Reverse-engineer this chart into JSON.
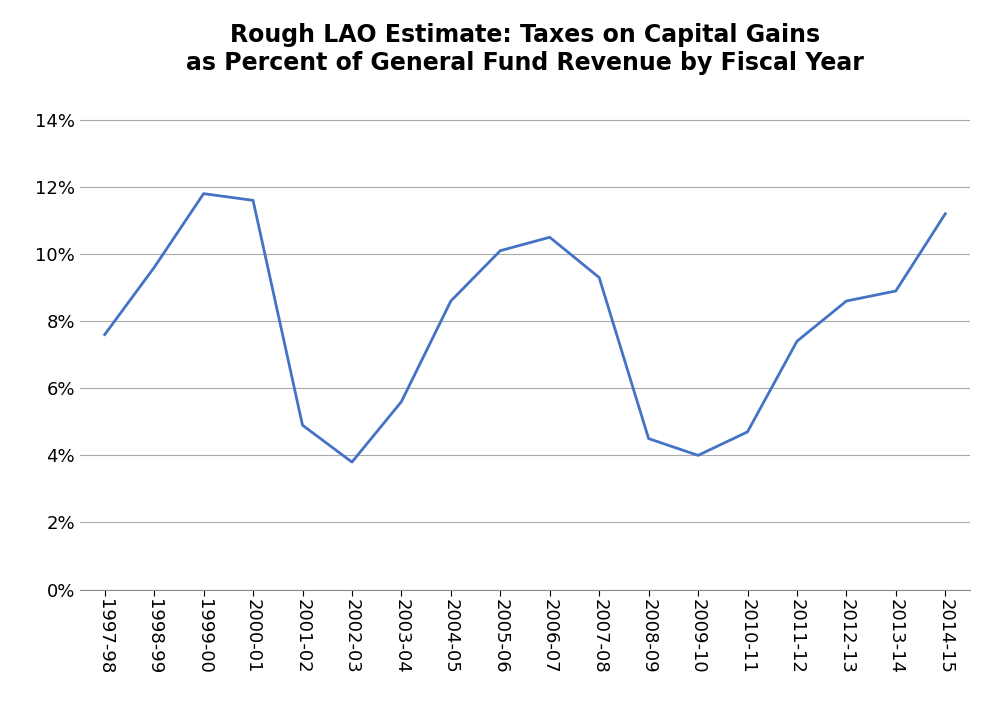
{
  "title_line1": "Rough LAO Estimate: Taxes on Capital Gains",
  "title_line2": "as Percent of General Fund Revenue by Fiscal Year",
  "title_fontsize": 17,
  "line_color": "#4472C4",
  "line_width": 2.0,
  "background_color": "#FFFFFF",
  "grid_color": "#AAAAAA",
  "categories": [
    "1997-98",
    "1998-99",
    "1999-00",
    "2000-01",
    "2001-02",
    "2002-03",
    "2003-04",
    "2004-05",
    "2005-06",
    "2006-07",
    "2007-08",
    "2008-09",
    "2009-10",
    "2010-11",
    "2011-12",
    "2012-13",
    "2013-14",
    "2014-15"
  ],
  "values": [
    0.076,
    0.096,
    0.118,
    0.116,
    0.049,
    0.038,
    0.056,
    0.086,
    0.101,
    0.105,
    0.093,
    0.045,
    0.04,
    0.047,
    0.074,
    0.086,
    0.089,
    0.112
  ],
  "ylim": [
    0,
    0.15
  ],
  "ytick_values": [
    0,
    0.02,
    0.04,
    0.06,
    0.08,
    0.1,
    0.12,
    0.14
  ],
  "tick_fontsize": 13,
  "label_fontsize": 13
}
